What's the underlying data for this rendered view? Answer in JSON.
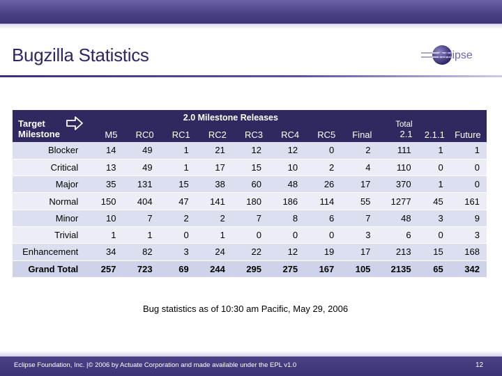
{
  "slide": {
    "title": "Bugzilla Statistics",
    "logo_text": "eclipse",
    "footnote": "Bug statistics as of 10:30 am Pacific, May 29, 2006",
    "footer": "Eclipse Foundation, Inc. |© 2006 by Actuate Corporation and made available under the EPL v1.0",
    "page_number": "12"
  },
  "table": {
    "corner_label_line1": "Target",
    "corner_label_line2": "Milestone",
    "group_header": "2.0 Milestone Releases",
    "columns": [
      "M5",
      "RC0",
      "RC1",
      "RC2",
      "RC3",
      "RC4",
      "RC5",
      "Final"
    ],
    "total_header_line1": "Total",
    "total_header_line2": "2.1",
    "col_211": "2.1.1",
    "col_future": "Future",
    "rows": [
      {
        "label": "Blocker",
        "values": [
          "14",
          "49",
          "1",
          "21",
          "12",
          "12",
          "0",
          "2",
          "111",
          "1",
          "1"
        ]
      },
      {
        "label": "Critical",
        "values": [
          "13",
          "49",
          "1",
          "17",
          "15",
          "10",
          "2",
          "4",
          "110",
          "0",
          "0"
        ]
      },
      {
        "label": "Major",
        "values": [
          "35",
          "131",
          "15",
          "38",
          "60",
          "48",
          "26",
          "17",
          "370",
          "1",
          "0"
        ]
      },
      {
        "label": "Normal",
        "values": [
          "150",
          "404",
          "47",
          "141",
          "180",
          "186",
          "114",
          "55",
          "1277",
          "45",
          "161"
        ]
      },
      {
        "label": "Minor",
        "values": [
          "10",
          "7",
          "2",
          "2",
          "7",
          "8",
          "6",
          "7",
          "48",
          "3",
          "9"
        ]
      },
      {
        "label": "Trivial",
        "values": [
          "1",
          "1",
          "0",
          "1",
          "0",
          "0",
          "0",
          "3",
          "6",
          "0",
          "3"
        ]
      },
      {
        "label": "Enhancement",
        "values": [
          "34",
          "82",
          "3",
          "24",
          "22",
          "12",
          "19",
          "17",
          "213",
          "15",
          "168"
        ]
      },
      {
        "label": "Grand Total",
        "values": [
          "257",
          "723",
          "69",
          "244",
          "295",
          "275",
          "167",
          "105",
          "2135",
          "65",
          "342"
        ]
      }
    ]
  },
  "colors": {
    "header_dark": "#2f2960",
    "title_text": "#2d2668",
    "row_band": "#dcdff0"
  }
}
